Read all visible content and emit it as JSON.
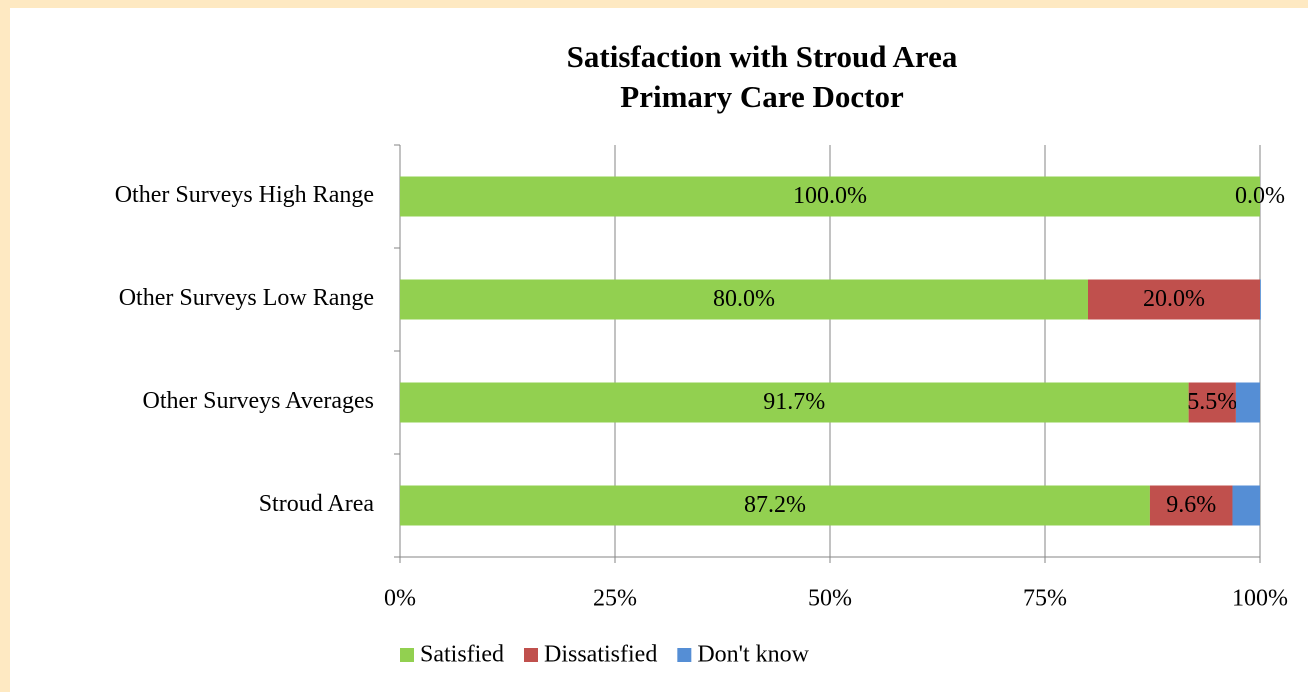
{
  "chart_data": {
    "type": "stacked-bar-horizontal",
    "title": [
      "Satisfaction with Stroud Area",
      "Primary Care Doctor"
    ],
    "categories": [
      "Other Surveys High Range",
      "Other Surveys Low Range",
      "Other Surveys Averages",
      "Stroud Area"
    ],
    "series": [
      {
        "name": "Satisfied",
        "color": "#92d050",
        "values": [
          100,
          80,
          91.7,
          87.2
        ],
        "value_labels": [
          "100.0%",
          "80.0%",
          "91.7%",
          "87.2%"
        ]
      },
      {
        "name": "Dissatisfied",
        "color": "#c0504d",
        "values": [
          0,
          20,
          5.5,
          9.6
        ],
        "value_labels": [
          "0.0%",
          "20.0%",
          "5.5%",
          "9.6%"
        ]
      },
      {
        "name": "Don't know",
        "color": "#558ed5",
        "values": [
          0,
          0.1,
          2.8,
          3.2
        ]
      }
    ],
    "xlim": [
      0,
      100
    ],
    "xticks": [
      {
        "value": 0,
        "label": "0%"
      },
      {
        "value": 25,
        "label": "25%"
      },
      {
        "value": 50,
        "label": "50%"
      },
      {
        "value": 75,
        "label": "75%"
      },
      {
        "value": 100,
        "label": "100%"
      }
    ],
    "grid": true,
    "legend": "bottom"
  }
}
